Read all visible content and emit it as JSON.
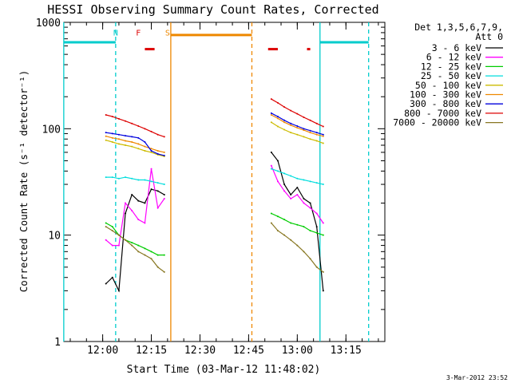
{
  "chart_data": {
    "type": "line",
    "title": "HESSI Observing Summary Count Rates, Corrected",
    "xlabel": "Start Time (03-Mar-12 11:48:02)",
    "ylabel": "Corrected Count Rate (s⁻¹ detector⁻¹)",
    "y_scale": "log",
    "ylim": [
      1,
      1000
    ],
    "y_ticks": [
      1,
      10,
      100,
      1000
    ],
    "y_tick_labels": [
      "1",
      "10",
      "100",
      "1000"
    ],
    "xlim": [
      "11:48:02",
      "13:27:00"
    ],
    "x_ticks": [
      "12:00",
      "12:15",
      "12:30",
      "12:45",
      "13:00",
      "13:15"
    ],
    "legend": {
      "header1": "Det 1,3,5,6,7,9,",
      "header2": "Att 0",
      "placement": "top-right outside plot"
    },
    "date_stamp": "3-Mar-2012 23:52",
    "flags": [
      {
        "label": "N",
        "color": "#00cccc",
        "time": "12:04"
      },
      {
        "label": "F",
        "color": "#dd0000",
        "time": "12:11"
      },
      {
        "label": "S",
        "color": "#ee8800",
        "time": "12:20"
      }
    ],
    "saa_line": {
      "color": "#ee8800",
      "start": "12:21",
      "end": "12:46",
      "value": 760
    },
    "night_lines": [
      {
        "color": "#00cccc",
        "start": "11:48",
        "end": "12:04",
        "value": 650
      },
      {
        "color": "#00cccc",
        "start": "13:07",
        "end": "13:22",
        "value": 650
      }
    ],
    "flare_marks": [
      {
        "color": "#dd0000",
        "start": "12:13",
        "end": "12:16",
        "value": 560
      },
      {
        "color": "#dd0000",
        "start": "12:51",
        "end": "12:54",
        "value": 560
      },
      {
        "color": "#dd0000",
        "start": "13:03",
        "end": "13:04",
        "value": 560
      }
    ],
    "vertical_lines": [
      {
        "color": "#00cccc",
        "time": "11:48",
        "style": "solid"
      },
      {
        "color": "#00cccc",
        "time": "12:04",
        "style": "dashed"
      },
      {
        "color": "#00cccc",
        "time": "13:07",
        "style": "solid"
      },
      {
        "color": "#00cccc",
        "time": "13:22",
        "style": "dashed"
      },
      {
        "color": "#ee8800",
        "time": "12:21",
        "style": "solid"
      },
      {
        "color": "#ee8800",
        "time": "12:46",
        "style": "dashed"
      }
    ],
    "series": [
      {
        "name": "3 - 6 keV",
        "color": "#000000",
        "x": [
          "12:01",
          "12:03",
          "12:05",
          "12:07",
          "12:09",
          "12:11",
          "12:13",
          "12:15",
          "12:17",
          "12:19",
          "12:52",
          "12:54",
          "12:56",
          "12:58",
          "13:00",
          "13:02",
          "13:04",
          "13:06",
          "13:08"
        ],
        "y": [
          3.5,
          4,
          3,
          16,
          24,
          21,
          20,
          27,
          26,
          24,
          60,
          50,
          30,
          24,
          28,
          22,
          20,
          12,
          3
        ]
      },
      {
        "name": "6 - 12 keV",
        "color": "#ff00ff",
        "x": [
          "12:01",
          "12:03",
          "12:05",
          "12:07",
          "12:09",
          "12:11",
          "12:13",
          "12:15",
          "12:17",
          "12:19",
          "12:52",
          "12:54",
          "12:56",
          "12:58",
          "13:00",
          "13:02",
          "13:04",
          "13:06",
          "13:08"
        ],
        "y": [
          9,
          8,
          8,
          20,
          17,
          14,
          13,
          42,
          18,
          22,
          45,
          32,
          26,
          22,
          24,
          20,
          18,
          16,
          13
        ]
      },
      {
        "name": "12 - 25 keV",
        "color": "#00cc00",
        "x": [
          "12:01",
          "12:03",
          "12:05",
          "12:07",
          "12:09",
          "12:11",
          "12:13",
          "12:15",
          "12:17",
          "12:19",
          "12:52",
          "12:54",
          "12:56",
          "12:58",
          "13:00",
          "13:02",
          "13:04",
          "13:06",
          "13:08"
        ],
        "y": [
          13,
          12,
          10,
          9,
          8.5,
          8,
          7.5,
          7,
          6.5,
          6.5,
          16,
          15,
          14,
          13,
          12.5,
          12,
          11,
          10.5,
          10
        ]
      },
      {
        "name": "25 - 50 keV",
        "color": "#00dddd",
        "x": [
          "12:01",
          "12:03",
          "12:05",
          "12:07",
          "12:09",
          "12:11",
          "12:13",
          "12:15",
          "12:17",
          "12:19",
          "12:52",
          "12:54",
          "12:56",
          "12:58",
          "13:00",
          "13:02",
          "13:04",
          "13:06",
          "13:08"
        ],
        "y": [
          35,
          35,
          34,
          35,
          34,
          33,
          33,
          32,
          31,
          30,
          42,
          40,
          38,
          36,
          34,
          33,
          32,
          31,
          30
        ]
      },
      {
        "name": "50 - 100 keV",
        "color": "#ccbb00",
        "x": [
          "12:01",
          "12:03",
          "12:05",
          "12:07",
          "12:09",
          "12:11",
          "12:13",
          "12:15",
          "12:17",
          "12:19",
          "12:52",
          "12:54",
          "12:56",
          "12:58",
          "13:00",
          "13:02",
          "13:04",
          "13:06",
          "13:08"
        ],
        "y": [
          78,
          75,
          72,
          70,
          68,
          65,
          62,
          60,
          57,
          55,
          115,
          105,
          98,
          92,
          88,
          84,
          80,
          77,
          73
        ]
      },
      {
        "name": "100 - 300 keV",
        "color": "#ee8800",
        "x": [
          "12:01",
          "12:03",
          "12:05",
          "12:07",
          "12:09",
          "12:11",
          "12:13",
          "12:15",
          "12:17",
          "12:19",
          "12:52",
          "12:54",
          "12:56",
          "12:58",
          "13:00",
          "13:02",
          "13:04",
          "13:06",
          "13:08"
        ],
        "y": [
          85,
          82,
          80,
          77,
          75,
          72,
          68,
          65,
          62,
          60,
          135,
          125,
          115,
          108,
          102,
          97,
          92,
          88,
          85
        ]
      },
      {
        "name": "300 - 800 keV",
        "color": "#0000dd",
        "x": [
          "12:01",
          "12:03",
          "12:05",
          "12:07",
          "12:09",
          "12:11",
          "12:13",
          "12:15",
          "12:17",
          "12:19",
          "12:52",
          "12:54",
          "12:56",
          "12:58",
          "13:00",
          "13:02",
          "13:04",
          "13:06",
          "13:08"
        ],
        "y": [
          92,
          90,
          88,
          86,
          84,
          82,
          75,
          62,
          58,
          56,
          140,
          130,
          120,
          112,
          106,
          100,
          96,
          92,
          88
        ]
      },
      {
        "name": "800 - 7000 keV",
        "color": "#dd0000",
        "x": [
          "12:01",
          "12:03",
          "12:05",
          "12:07",
          "12:09",
          "12:11",
          "12:13",
          "12:15",
          "12:17",
          "12:19",
          "12:52",
          "12:54",
          "12:56",
          "12:58",
          "13:00",
          "13:02",
          "13:04",
          "13:06",
          "13:08"
        ],
        "y": [
          135,
          130,
          124,
          118,
          112,
          106,
          100,
          94,
          88,
          84,
          190,
          175,
          160,
          148,
          138,
          128,
          120,
          112,
          105
        ]
      },
      {
        "name": "7000 - 20000 keV",
        "color": "#887722",
        "x": [
          "12:01",
          "12:03",
          "12:05",
          "12:07",
          "12:09",
          "12:11",
          "12:13",
          "12:15",
          "12:17",
          "12:19",
          "12:52",
          "12:54",
          "12:56",
          "12:58",
          "13:00",
          "13:02",
          "13:04",
          "13:06",
          "13:08"
        ],
        "y": [
          12,
          11,
          10,
          9,
          8,
          7,
          6.5,
          6,
          5,
          4.5,
          13,
          11,
          10,
          9,
          8,
          7,
          6,
          5,
          4.5
        ]
      }
    ]
  }
}
